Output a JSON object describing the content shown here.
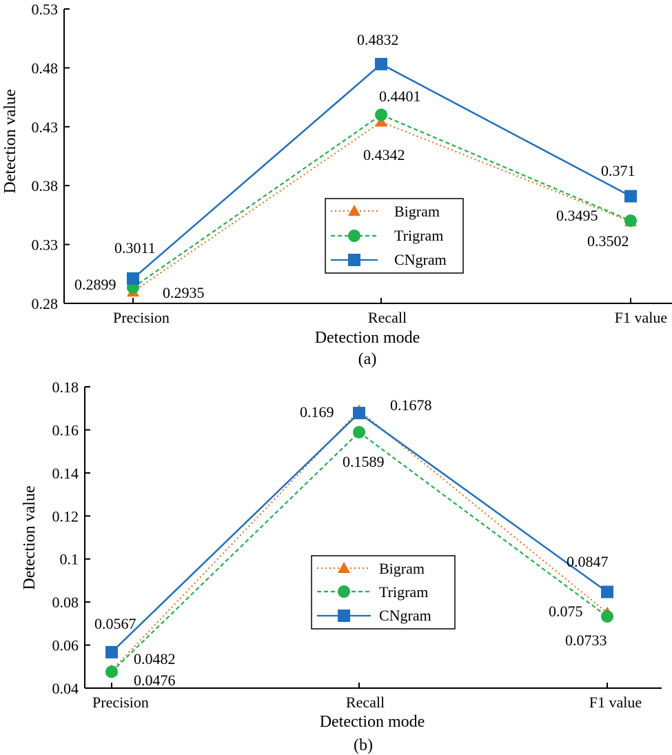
{
  "colors": {
    "bigram": "#E8731A",
    "trigram": "#22B14C",
    "cngram": "#1F6FBF",
    "axis": "#000000"
  },
  "legend_names": [
    "Bigram",
    "Trigram",
    "CNgram"
  ],
  "chart_data": [
    {
      "type": "line",
      "panel_label": "(a)",
      "xlabel": "Detection mode",
      "ylabel": "Detection value",
      "categories": [
        "Precision",
        "Recall",
        "F1 value"
      ],
      "ylim": [
        0.28,
        0.53
      ],
      "yticks": [
        "0.28",
        "0.33",
        "0.38",
        "0.43",
        "0.48",
        "0.53"
      ],
      "legend_position": "center-right",
      "series": [
        {
          "name": "Bigram",
          "marker": "triangle",
          "style": "dotted",
          "values": [
            0.2899,
            0.4342,
            0.3495
          ]
        },
        {
          "name": "Trigram",
          "marker": "circle",
          "style": "dashed",
          "values": [
            0.2935,
            0.4401,
            0.3502
          ]
        },
        {
          "name": "CNgram",
          "marker": "square",
          "style": "solid",
          "values": [
            0.3011,
            0.4832,
            0.371
          ]
        }
      ],
      "annotations": [
        "0.2899",
        "0.2935",
        "0.3011",
        "0.4342",
        "0.4401",
        "0.4832",
        "0.3495",
        "0.3502",
        "0.371"
      ]
    },
    {
      "type": "line",
      "panel_label": "(b)",
      "xlabel": "Detection mode",
      "ylabel": "Detection value",
      "categories": [
        "Precision",
        "Recall",
        "F1 value"
      ],
      "ylim": [
        0.04,
        0.18
      ],
      "yticks": [
        "0.04",
        "0.06",
        "0.08",
        "0.1",
        "0.12",
        "0.14",
        "0.16",
        "0.18"
      ],
      "legend_position": "center-right",
      "series": [
        {
          "name": "Bigram",
          "marker": "triangle",
          "style": "dotted",
          "values": [
            0.0482,
            0.169,
            0.075
          ]
        },
        {
          "name": "Trigram",
          "marker": "circle",
          "style": "dashed",
          "values": [
            0.0476,
            0.1589,
            0.0733
          ]
        },
        {
          "name": "CNgram",
          "marker": "square",
          "style": "solid",
          "values": [
            0.0567,
            0.1678,
            0.0847
          ]
        }
      ],
      "annotations": [
        "0.0482",
        "0.0476",
        "0.0567",
        "0.169",
        "0.1589",
        "0.1678",
        "0.075",
        "0.0733",
        "0.0847"
      ]
    }
  ]
}
